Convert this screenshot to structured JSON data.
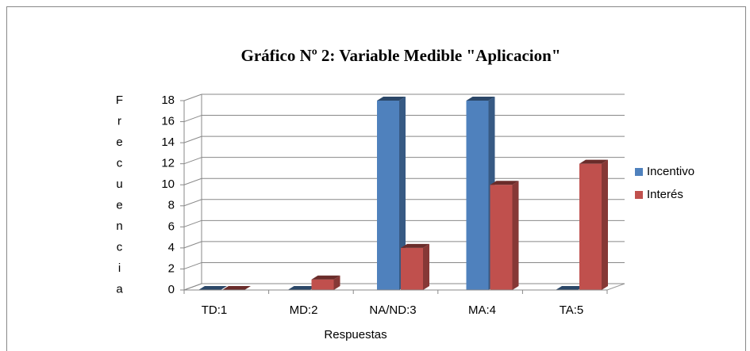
{
  "chart_data": {
    "type": "bar3d",
    "title": "Gráfico Nº 2:  Variable  Medible  \"Aplicacion\"",
    "y_label": "Frecuencia",
    "x_label": "Respuestas",
    "categories": [
      "TD:1",
      "MD:2",
      "NA/ND:3",
      "MA:4",
      "TA:5"
    ],
    "series": [
      {
        "name": "Incentivo",
        "color": "#4f81bd",
        "values": [
          0,
          0,
          18,
          18,
          0
        ]
      },
      {
        "name": "Interés",
        "color": "#c0504d",
        "values": [
          0,
          1,
          4,
          10,
          12
        ]
      }
    ],
    "ylim": [
      0,
      18
    ],
    "yticks": [
      0,
      2,
      4,
      6,
      8,
      10,
      12,
      14,
      16,
      18
    ],
    "grid": true,
    "legend": "right"
  }
}
